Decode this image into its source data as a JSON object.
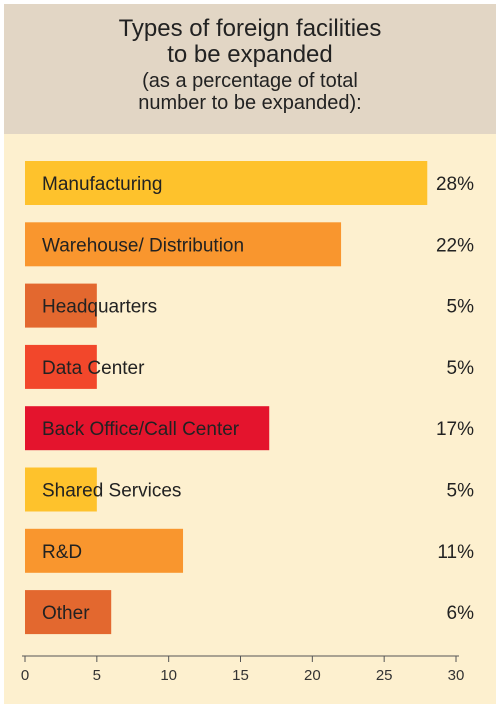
{
  "chart_data": {
    "type": "bar",
    "orientation": "horizontal",
    "title_lines": [
      "Types of foreign facilities",
      "to be expanded"
    ],
    "subtitle_lines": [
      "(as a percentage of total",
      "number to be expanded):"
    ],
    "categories": [
      "Manufacturing",
      "Warehouse/ Distribution",
      "Headquarters",
      "Data Center",
      "Back Office/Call Center",
      "Shared Services",
      "R&D",
      "Other"
    ],
    "values": [
      28,
      22,
      5,
      5,
      17,
      5,
      11,
      6
    ],
    "value_labels": [
      "28%",
      "22%",
      "5%",
      "5%",
      "17%",
      "5%",
      "11%",
      "6%"
    ],
    "bar_colors": [
      "#fec22c",
      "#f9962e",
      "#e3682f",
      "#f2472b",
      "#e4142d",
      "#fec22c",
      "#f9962e",
      "#e3682f"
    ],
    "xlim": [
      0,
      30
    ],
    "x_ticks": [
      0,
      5,
      10,
      15,
      20,
      25,
      30
    ],
    "x_tick_labels": [
      "0",
      "5",
      "10",
      "15",
      "20",
      "25",
      "30"
    ],
    "grid": false,
    "legend": "none"
  }
}
